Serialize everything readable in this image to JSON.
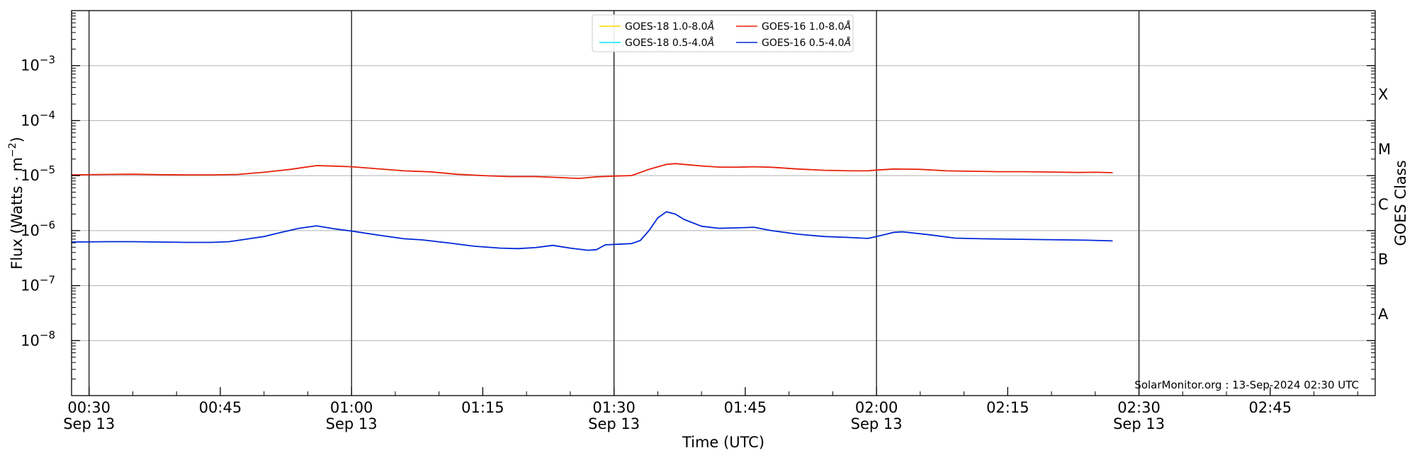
{
  "chart_data": {
    "type": "line",
    "xlabel": "Time (UTC)",
    "ylabel_main": "Flux (Watts · m",
    "ylabel_sup": "−2",
    "ylabel_close": ")",
    "y2label": "GOES Class",
    "credit": "SolarMonitor.org : 13-Sep-2024 02:30 UTC",
    "y_scale": "log",
    "ylim": [
      1e-09,
      0.01
    ],
    "xlim": [
      "00:28",
      "02:57"
    ],
    "grid": "horizontal",
    "legend_position": "top-center",
    "x_ticks": [
      {
        "t": "00:30",
        "line1": "00:30",
        "line2": "Sep 13",
        "day_line": true
      },
      {
        "t": "00:45",
        "line1": "00:45",
        "line2": "",
        "day_line": false
      },
      {
        "t": "01:00",
        "line1": "01:00",
        "line2": "Sep 13",
        "day_line": true
      },
      {
        "t": "01:15",
        "line1": "01:15",
        "line2": "",
        "day_line": false
      },
      {
        "t": "01:30",
        "line1": "01:30",
        "line2": "Sep 13",
        "day_line": true
      },
      {
        "t": "01:45",
        "line1": "01:45",
        "line2": "",
        "day_line": false
      },
      {
        "t": "02:00",
        "line1": "02:00",
        "line2": "Sep 13",
        "day_line": true
      },
      {
        "t": "02:15",
        "line1": "02:15",
        "line2": "",
        "day_line": false
      },
      {
        "t": "02:30",
        "line1": "02:30",
        "line2": "Sep 13",
        "day_line": true
      },
      {
        "t": "02:45",
        "line1": "02:45",
        "line2": "",
        "day_line": false
      }
    ],
    "y_ticks": [
      {
        "v": 1e-08,
        "base": "10",
        "exp": "−8"
      },
      {
        "v": 1e-07,
        "base": "10",
        "exp": "−7"
      },
      {
        "v": 1e-06,
        "base": "10",
        "exp": "−6"
      },
      {
        "v": 1e-05,
        "base": "10",
        "exp": "−5"
      },
      {
        "v": 0.0001,
        "base": "10",
        "exp": "−4"
      },
      {
        "v": 0.001,
        "base": "10",
        "exp": "−3"
      }
    ],
    "goes_classes": [
      {
        "label": "A",
        "v": 3e-08
      },
      {
        "label": "B",
        "v": 3e-07
      },
      {
        "label": "C",
        "v": 3e-06
      },
      {
        "label": "M",
        "v": 3e-05
      },
      {
        "label": "X",
        "v": 0.0003
      }
    ],
    "legend": [
      {
        "base": "GOES-18 1.0-8.0",
        "unit": "Å",
        "color": "#ffd700"
      },
      {
        "base": "GOES-18 0.5-4.0",
        "unit": "Å",
        "color": "#00e5ff"
      },
      {
        "base": "GOES-16 1.0-8.0",
        "unit": "Å",
        "color": "#e8210b"
      },
      {
        "base": "GOES-16 0.5-4.0",
        "unit": "Å",
        "color": "#0028d8"
      }
    ],
    "series": [
      {
        "name": "GOES-16 1.0-8.0Å",
        "color": "#e8210b",
        "x": [
          "00:28",
          "00:32",
          "00:35",
          "00:38",
          "00:41",
          "00:44",
          "00:47",
          "00:50",
          "00:53",
          "00:56",
          "00:58",
          "01:00",
          "01:03",
          "01:06",
          "01:09",
          "01:12",
          "01:15",
          "01:18",
          "01:21",
          "01:24",
          "01:26",
          "01:28",
          "01:30",
          "01:32",
          "01:34",
          "01:36",
          "01:37",
          "01:38",
          "01:40",
          "01:42",
          "01:44",
          "01:46",
          "01:48",
          "01:51",
          "01:54",
          "01:57",
          "01:59",
          "02:00",
          "02:02",
          "02:05",
          "02:08",
          "02:11",
          "02:14",
          "02:17",
          "02:20",
          "02:23",
          "02:25",
          "02:27"
        ],
        "y": [
          1.03e-05,
          1.05e-05,
          1.06e-05,
          1.04e-05,
          1.03e-05,
          1.03e-05,
          1.05e-05,
          1.15e-05,
          1.3e-05,
          1.52e-05,
          1.49e-05,
          1.45e-05,
          1.33e-05,
          1.22e-05,
          1.17e-05,
          1.06e-05,
          1e-05,
          9.6e-06,
          9.6e-06,
          9.2e-06,
          8.9e-06,
          9.5e-06,
          9.8e-06,
          1e-05,
          1.3e-05,
          1.6e-05,
          1.65e-05,
          1.6e-05,
          1.5e-05,
          1.43e-05,
          1.42e-05,
          1.45e-05,
          1.42e-05,
          1.32e-05,
          1.25e-05,
          1.22e-05,
          1.22e-05,
          1.26e-05,
          1.32e-05,
          1.3e-05,
          1.22e-05,
          1.2e-05,
          1.18e-05,
          1.18e-05,
          1.16e-05,
          1.14e-05,
          1.15e-05,
          1.13e-05
        ]
      },
      {
        "name": "GOES-16 0.5-4.0Å",
        "color": "#0028d8",
        "x": [
          "00:28",
          "00:32",
          "00:35",
          "00:38",
          "00:41",
          "00:44",
          "00:46",
          "00:48",
          "00:50",
          "00:52",
          "00:54",
          "00:56",
          "00:58",
          "01:00",
          "01:03",
          "01:06",
          "01:08",
          "01:11",
          "01:14",
          "01:17",
          "01:19",
          "01:21",
          "01:23",
          "01:25",
          "01:26",
          "01:27",
          "01:28",
          "01:29",
          "01:31",
          "01:32",
          "01:33",
          "01:34",
          "01:35",
          "01:36",
          "01:37",
          "01:38",
          "01:40",
          "01:42",
          "01:44",
          "01:46",
          "01:48",
          "01:51",
          "01:54",
          "01:57",
          "01:59",
          "02:00",
          "02:02",
          "02:03",
          "02:06",
          "02:09",
          "02:12",
          "02:15",
          "02:18",
          "02:21",
          "02:24",
          "02:27"
        ],
        "y": [
          6.2e-07,
          6.3e-07,
          6.3e-07,
          6.2e-07,
          6.1e-07,
          6.1e-07,
          6.3e-07,
          7e-07,
          7.8e-07,
          9.3e-07,
          1.1e-06,
          1.22e-06,
          1.08e-06,
          9.8e-07,
          8.3e-07,
          7.1e-07,
          6.8e-07,
          6e-07,
          5.2e-07,
          4.8e-07,
          4.7e-07,
          4.9e-07,
          5.4e-07,
          4.8e-07,
          4.6e-07,
          4.4e-07,
          4.5e-07,
          5.5e-07,
          5.7e-07,
          5.8e-07,
          6.6e-07,
          1e-06,
          1.7e-06,
          2.2e-06,
          2e-06,
          1.6e-06,
          1.2e-06,
          1.1e-06,
          1.12e-06,
          1.15e-06,
          1e-06,
          8.6e-07,
          7.8e-07,
          7.5e-07,
          7.2e-07,
          7.8e-07,
          9.3e-07,
          9.5e-07,
          8.4e-07,
          7.3e-07,
          7.1e-07,
          7e-07,
          6.9e-07,
          6.8e-07,
          6.7e-07,
          6.5e-07
        ]
      }
    ]
  }
}
